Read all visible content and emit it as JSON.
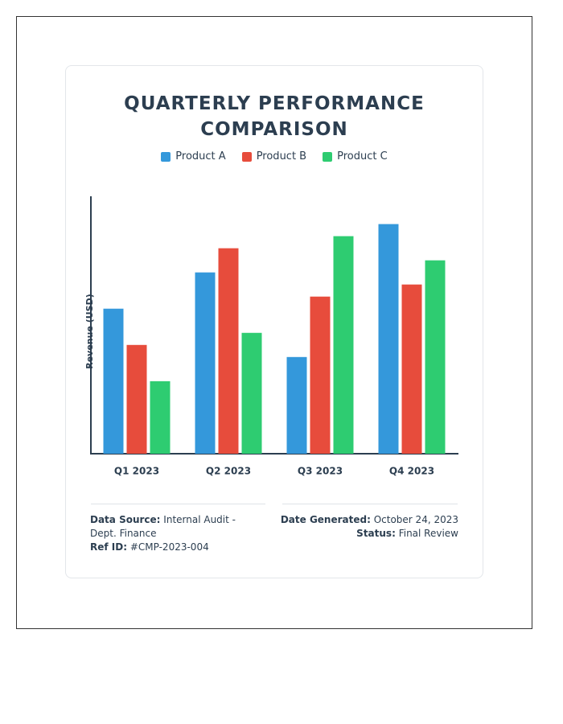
{
  "chart_data": {
    "type": "bar",
    "title": "QUARTERLY PERFORMANCE COMPARISON",
    "y_label": "Revenue (USD)",
    "categories": [
      "Q1 2023",
      "Q2 2023",
      "Q3 2023",
      "Q4 2023"
    ],
    "series": [
      {
        "name": "Product A",
        "color": "#3498db",
        "values": [
          12,
          15,
          8,
          19
        ]
      },
      {
        "name": "Product B",
        "color": "#e74c3c",
        "values": [
          9,
          17,
          13,
          14
        ]
      },
      {
        "name": "Product C",
        "color": "#2ecc71",
        "values": [
          6,
          10,
          18,
          16
        ]
      }
    ],
    "ylim": [
      0,
      21.3
    ]
  },
  "footer": {
    "source_label": "Data Source:",
    "source": "Internal Audit - Dept. Finance",
    "ref_label": "Ref ID:",
    "ref": "#CMP-2023-004",
    "date_label": "Date Generated:",
    "date": "October 24, 2023",
    "status_label": "Status:",
    "status": "Final Review"
  }
}
